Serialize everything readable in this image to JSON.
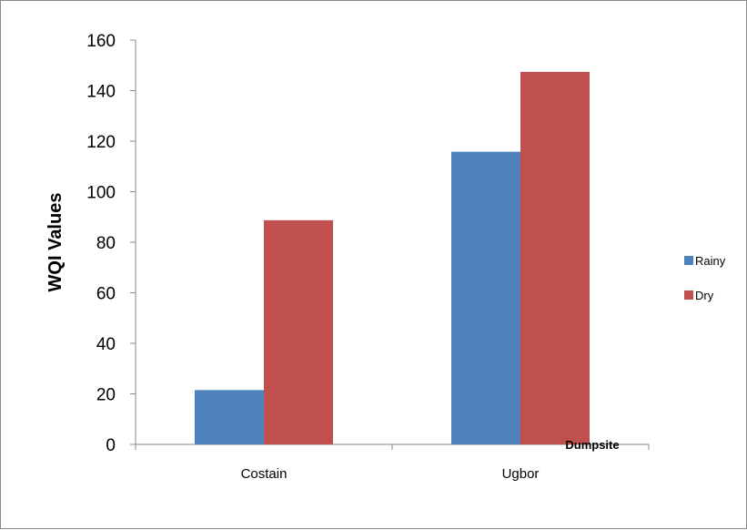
{
  "chart_data": {
    "type": "bar",
    "categories": [
      "Costain",
      "Ugbor"
    ],
    "series": [
      {
        "name": "Rainy",
        "values": [
          21.5,
          115.8
        ],
        "color": "#4F81BD"
      },
      {
        "name": "Dry",
        "values": [
          88.7,
          147.4
        ],
        "color": "#C0504D"
      }
    ],
    "title": "",
    "xlabel": "Dumpsite",
    "ylabel": "WQI Values",
    "ylim": [
      0,
      160
    ],
    "yticks": [
      "0",
      "20",
      "40",
      "60",
      "80",
      "100",
      "120",
      "140",
      "160"
    ],
    "grid": false,
    "legend_position": "right"
  }
}
